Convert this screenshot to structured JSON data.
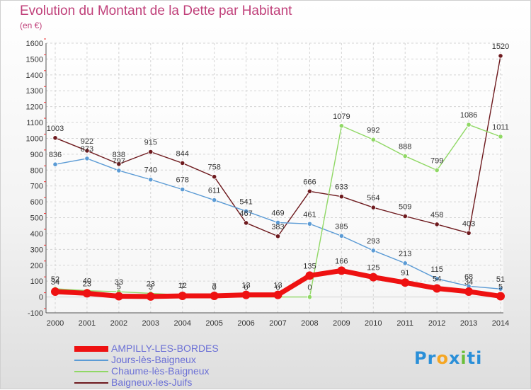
{
  "title": "Evolution du Montant de la Dette par Habitant",
  "subtitle": "(en €)",
  "logo": {
    "parts": [
      "Pr",
      "o",
      "x",
      "i",
      "ti"
    ],
    "colors": [
      "#2a8fd8",
      "#f5a623",
      "#2a8fd8",
      "#6bbf3a",
      "#2a8fd8"
    ]
  },
  "chart_data": {
    "type": "line",
    "x": [
      "2000",
      "2001",
      "2002",
      "2003",
      "2004",
      "2005",
      "2006",
      "2007",
      "2008",
      "2009",
      "2010",
      "2011",
      "2012",
      "2013",
      "2014"
    ],
    "ylim": [
      -100,
      1600
    ],
    "yticks": [
      -100,
      0,
      100,
      200,
      300,
      400,
      500,
      600,
      700,
      800,
      900,
      1000,
      1100,
      1200,
      1300,
      1400,
      1500,
      1600
    ],
    "grid": true,
    "legend_position": "bottom-left",
    "series": [
      {
        "name": "AMPILLY-LES-BORDES",
        "color": "#ee1111",
        "labels": [
          "34",
          "23",
          "5",
          "3",
          "7",
          "7",
          "13",
          "13",
          "135",
          "166",
          "125",
          "91",
          "54",
          "34",
          "5"
        ],
        "values": [
          34,
          23,
          5,
          3,
          7,
          7,
          13,
          13,
          135,
          166,
          125,
          91,
          54,
          34,
          5
        ]
      },
      {
        "name": "Jours-lès-Baigneux",
        "color": "#5b9bd5",
        "labels": [
          "836",
          "873",
          "797",
          "740",
          "678",
          "611",
          "541",
          "469",
          "461",
          "385",
          "293",
          "213",
          "115",
          "68",
          "51"
        ],
        "values": [
          836,
          873,
          797,
          740,
          678,
          611,
          541,
          469,
          461,
          385,
          293,
          213,
          115,
          68,
          51
        ]
      },
      {
        "name": "Chaume-lès-Baigneux",
        "color": "#90d865",
        "labels": [
          "52",
          "40",
          "33",
          "23",
          "12",
          "0",
          "0",
          "0",
          "0",
          "1079",
          "992",
          "888",
          "799",
          "1086",
          "1011"
        ],
        "values": [
          52,
          40,
          33,
          23,
          12,
          0,
          0,
          0,
          0,
          1079,
          992,
          888,
          799,
          1086,
          1011
        ]
      },
      {
        "name": "Baigneux-les-Juifs",
        "color": "#6e1a1e",
        "labels": [
          "1003",
          "922",
          "838",
          "915",
          "844",
          "758",
          "467",
          "383",
          "666",
          "633",
          "564",
          "509",
          "458",
          "403",
          "1520"
        ],
        "values": [
          1003,
          922,
          838,
          915,
          844,
          758,
          467,
          383,
          666,
          633,
          564,
          509,
          458,
          403,
          1520
        ]
      }
    ]
  }
}
